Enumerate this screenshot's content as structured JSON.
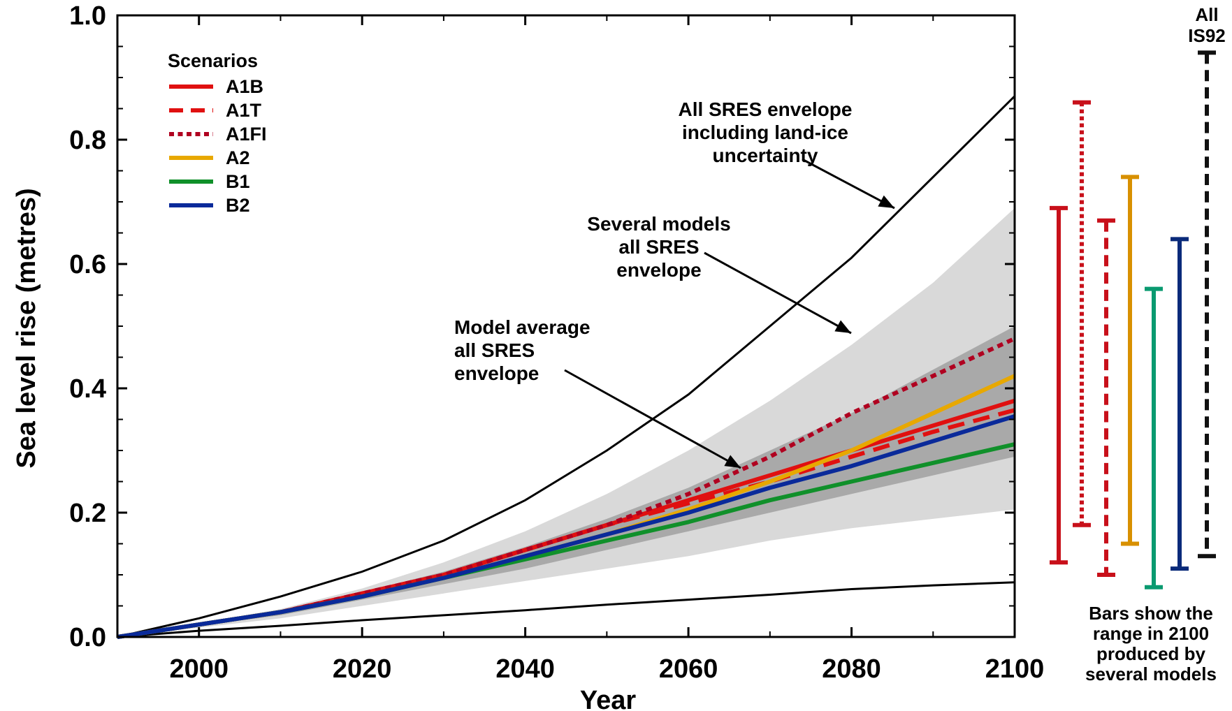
{
  "chart_data": {
    "type": "line",
    "title": "",
    "xlabel": "Year",
    "ylabel": "Sea level rise (metres)",
    "xlim": [
      1990,
      2100
    ],
    "ylim": [
      0,
      1.0
    ],
    "x_ticks": [
      2000,
      2020,
      2040,
      2060,
      2080,
      2100
    ],
    "y_ticks": [
      "0.0",
      "0.2",
      "0.4",
      "0.6",
      "0.8",
      "1.0"
    ],
    "grid": false,
    "legend": {
      "title": "Scenarios",
      "placement": "top-left",
      "entries": [
        {
          "name": "A1B",
          "color": "#e01010",
          "style": "solid"
        },
        {
          "name": "A1T",
          "color": "#e01010",
          "style": "dashed"
        },
        {
          "name": "A1FI",
          "color": "#b00020",
          "style": "dotted"
        },
        {
          "name": "A2",
          "color": "#e8a800",
          "style": "solid"
        },
        {
          "name": "B1",
          "color": "#10902a",
          "style": "solid"
        },
        {
          "name": "B2",
          "color": "#0a2a9a",
          "style": "solid"
        }
      ]
    },
    "series": [
      {
        "name": "A1B",
        "color": "#e01010",
        "style": "solid",
        "x": [
          1990,
          2000,
          2010,
          2020,
          2030,
          2040,
          2050,
          2060,
          2070,
          2080,
          2090,
          2100
        ],
        "y": [
          0,
          0.02,
          0.04,
          0.07,
          0.1,
          0.14,
          0.18,
          0.22,
          0.26,
          0.3,
          0.34,
          0.38
        ]
      },
      {
        "name": "A1T",
        "color": "#e01010",
        "style": "dashed",
        "x": [
          1990,
          2000,
          2010,
          2020,
          2030,
          2040,
          2050,
          2060,
          2070,
          2080,
          2090,
          2100
        ],
        "y": [
          0,
          0.02,
          0.04,
          0.07,
          0.1,
          0.14,
          0.18,
          0.215,
          0.25,
          0.29,
          0.33,
          0.365
        ]
      },
      {
        "name": "A1FI",
        "color": "#b00020",
        "style": "dotted",
        "x": [
          1990,
          2000,
          2010,
          2020,
          2030,
          2040,
          2050,
          2060,
          2070,
          2080,
          2090,
          2100
        ],
        "y": [
          0,
          0.02,
          0.04,
          0.07,
          0.1,
          0.14,
          0.18,
          0.23,
          0.29,
          0.36,
          0.42,
          0.48
        ]
      },
      {
        "name": "A2",
        "color": "#e8a800",
        "style": "solid",
        "x": [
          1990,
          2000,
          2010,
          2020,
          2030,
          2040,
          2050,
          2060,
          2070,
          2080,
          2090,
          2100
        ],
        "y": [
          0,
          0.02,
          0.04,
          0.065,
          0.095,
          0.13,
          0.165,
          0.205,
          0.25,
          0.3,
          0.36,
          0.42
        ]
      },
      {
        "name": "B1",
        "color": "#10902a",
        "style": "solid",
        "x": [
          1990,
          2000,
          2010,
          2020,
          2030,
          2040,
          2050,
          2060,
          2070,
          2080,
          2090,
          2100
        ],
        "y": [
          0,
          0.02,
          0.04,
          0.065,
          0.095,
          0.125,
          0.155,
          0.185,
          0.22,
          0.25,
          0.28,
          0.31
        ]
      },
      {
        "name": "B2",
        "color": "#0a2a9a",
        "style": "solid",
        "x": [
          1990,
          2000,
          2010,
          2020,
          2030,
          2040,
          2050,
          2060,
          2070,
          2080,
          2090,
          2100
        ],
        "y": [
          0,
          0.02,
          0.04,
          0.065,
          0.095,
          0.13,
          0.165,
          0.2,
          0.24,
          0.275,
          0.315,
          0.355
        ]
      }
    ],
    "envelopes": {
      "land_ice_upper": {
        "x": [
          1990,
          2000,
          2010,
          2020,
          2030,
          2040,
          2050,
          2060,
          2070,
          2080,
          2090,
          2100
        ],
        "y": [
          0,
          0.03,
          0.065,
          0.105,
          0.155,
          0.22,
          0.3,
          0.39,
          0.5,
          0.61,
          0.74,
          0.87
        ]
      },
      "land_ice_lower": {
        "x": [
          1990,
          2000,
          2010,
          2020,
          2030,
          2040,
          2050,
          2060,
          2070,
          2080,
          2090,
          2100
        ],
        "y": [
          0,
          0.01,
          0.018,
          0.027,
          0.035,
          0.043,
          0.052,
          0.06,
          0.068,
          0.077,
          0.083,
          0.088
        ]
      },
      "several_models": {
        "x": [
          1990,
          2000,
          2010,
          2020,
          2030,
          2040,
          2050,
          2060,
          2070,
          2080,
          2090,
          2100
        ],
        "upper": [
          0,
          0.022,
          0.045,
          0.078,
          0.12,
          0.17,
          0.23,
          0.3,
          0.38,
          0.47,
          0.57,
          0.69
        ],
        "lower": [
          0,
          0.015,
          0.03,
          0.05,
          0.07,
          0.09,
          0.11,
          0.13,
          0.155,
          0.175,
          0.19,
          0.205
        ]
      },
      "model_average": {
        "x": [
          1990,
          2000,
          2010,
          2020,
          2030,
          2040,
          2050,
          2060,
          2070,
          2080,
          2090,
          2100
        ],
        "upper": [
          0,
          0.02,
          0.042,
          0.072,
          0.105,
          0.145,
          0.19,
          0.24,
          0.3,
          0.36,
          0.43,
          0.5
        ],
        "lower": [
          0,
          0.018,
          0.035,
          0.06,
          0.085,
          0.11,
          0.14,
          0.17,
          0.2,
          0.23,
          0.26,
          0.29
        ]
      }
    },
    "range_bars_2100": [
      {
        "name": "A1B",
        "color": "#c8101a",
        "style": "solid",
        "low": 0.12,
        "high": 0.69
      },
      {
        "name": "A1T",
        "color": "#c8101a",
        "style": "dotted",
        "low": 0.18,
        "high": 0.86
      },
      {
        "name": "A1FI",
        "color": "#c8101a",
        "style": "dashed",
        "low": 0.1,
        "high": 0.67
      },
      {
        "name": "A2",
        "color": "#d89000",
        "style": "solid",
        "low": 0.15,
        "high": 0.74
      },
      {
        "name": "B1",
        "color": "#0a9a70",
        "style": "solid",
        "low": 0.08,
        "high": 0.56
      },
      {
        "name": "B2",
        "color": "#0a2a7a",
        "style": "solid",
        "low": 0.11,
        "high": 0.64
      },
      {
        "name": "All IS92",
        "color": "#111111",
        "style": "dashed",
        "low": 0.13,
        "high": 0.94
      }
    ],
    "range_bar_label": [
      "All",
      "IS92"
    ],
    "annotations": [
      {
        "id": "land-ice",
        "lines": [
          "All SRES envelope",
          "including land-ice",
          "uncertainty"
        ]
      },
      {
        "id": "several-models",
        "lines": [
          "Several models",
          "all SRES",
          "envelope"
        ]
      },
      {
        "id": "model-average",
        "lines": [
          "Model average",
          "all SRES",
          "envelope"
        ]
      }
    ],
    "bars_note": [
      "Bars show the",
      "range in 2100",
      "produced by",
      "several models"
    ]
  }
}
